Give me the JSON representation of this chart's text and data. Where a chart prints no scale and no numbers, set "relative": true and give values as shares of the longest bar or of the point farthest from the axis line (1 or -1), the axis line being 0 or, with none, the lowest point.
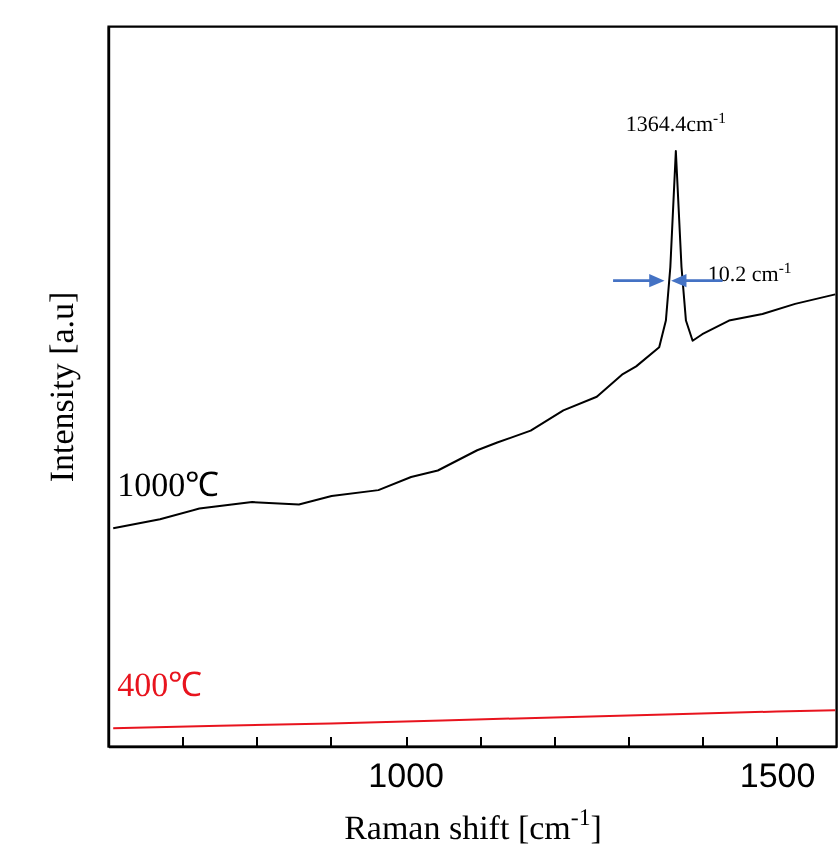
{
  "chart_data": {
    "type": "line",
    "xlabel": "Raman shift [cm$^{-1}$]",
    "ylabel": "Intensity [a.u]",
    "relative": true,
    "xlim": [
      600,
      1580
    ],
    "xticks": [
      {
        "value": 700,
        "label": null
      },
      {
        "value": 800,
        "label": null
      },
      {
        "value": 900,
        "label": null
      },
      1000,
      {
        "value": 1100,
        "label": null
      },
      {
        "value": 1200,
        "label": null
      },
      {
        "value": 1300,
        "label": null
      },
      {
        "value": 1400,
        "label": null
      },
      1500
    ],
    "annotations": [
      {
        "text": "1364.4cm$^{-1}$",
        "x": 1364.4,
        "y": 1
      },
      {
        "text": "10.2 cm$^{-1}$",
        "x": 1364.4,
        "y": 0.782
      }
    ],
    "series": [
      {
        "name": "1000℃",
        "color": "#000000",
        "x": [
          607,
          670,
          723,
          794,
          857,
          901,
          964,
          1008,
          1044,
          1097,
          1124,
          1169,
          1213,
          1258,
          1293,
          1311,
          1342,
          1351,
          1357,
          1364.4,
          1372,
          1378,
          1387,
          1400,
          1436,
          1481,
          1525,
          1579
        ],
        "values": [
          0.366,
          0.381,
          0.399,
          0.41,
          0.406,
          0.42,
          0.43,
          0.452,
          0.463,
          0.497,
          0.51,
          0.53,
          0.564,
          0.587,
          0.625,
          0.638,
          0.67,
          0.715,
          0.805,
          1,
          0.805,
          0.715,
          0.681,
          0.692,
          0.715,
          0.726,
          0.743,
          0.759
        ]
      },
      {
        "name": "400℃",
        "color": "#e8141e",
        "x": [
          607,
          750,
          900,
          1050,
          1200,
          1350,
          1500,
          1579
        ],
        "values": [
          0.03,
          0.034,
          0.038,
          0.043,
          0.048,
          0.053,
          0.058,
          0.06
        ]
      }
    ]
  }
}
